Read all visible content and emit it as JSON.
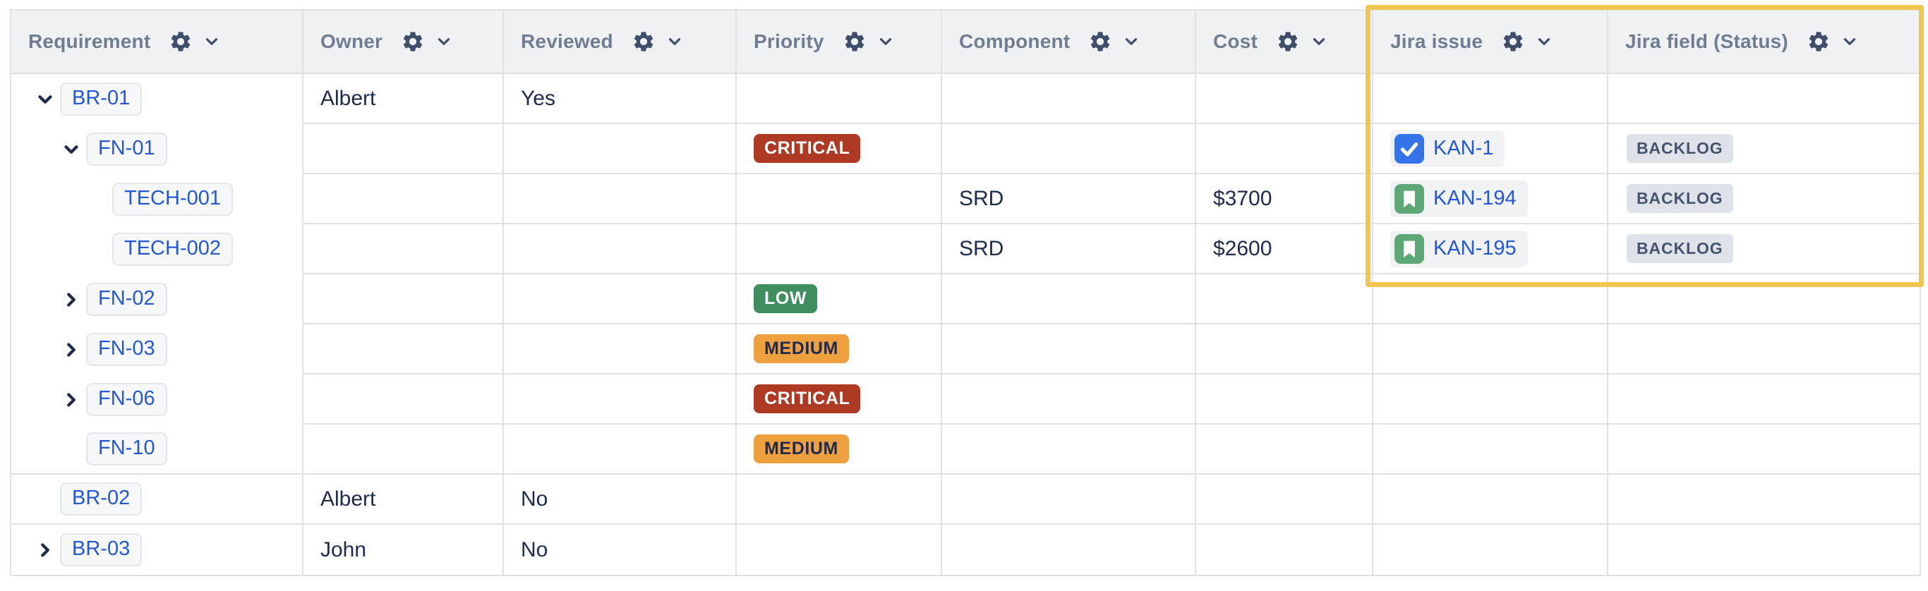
{
  "table": {
    "columns": [
      {
        "key": "requirement",
        "label": "Requirement"
      },
      {
        "key": "owner",
        "label": "Owner"
      },
      {
        "key": "reviewed",
        "label": "Reviewed"
      },
      {
        "key": "priority",
        "label": "Priority"
      },
      {
        "key": "component",
        "label": "Component"
      },
      {
        "key": "cost",
        "label": "Cost"
      },
      {
        "key": "jira_issue",
        "label": "Jira issue"
      },
      {
        "key": "jira_field_status",
        "label": "Jira field (Status)"
      }
    ],
    "rows": [
      {
        "requirement": "BR-01",
        "level": 0,
        "toggle": "expanded",
        "owner": "Albert",
        "reviewed": "Yes",
        "priority": "",
        "component": "",
        "cost": "",
        "jira_issue": null,
        "jira_field_status": ""
      },
      {
        "requirement": "FN-01",
        "level": 1,
        "toggle": "expanded",
        "owner": "",
        "reviewed": "",
        "priority": "CRITICAL",
        "component": "",
        "cost": "",
        "jira_issue": {
          "key": "KAN-1",
          "type": "task"
        },
        "jira_field_status": "BACKLOG"
      },
      {
        "requirement": "TECH-001",
        "level": 2,
        "toggle": "none",
        "owner": "",
        "reviewed": "",
        "priority": "",
        "component": "SRD",
        "cost": "$3700",
        "jira_issue": {
          "key": "KAN-194",
          "type": "story"
        },
        "jira_field_status": "BACKLOG"
      },
      {
        "requirement": "TECH-002",
        "level": 2,
        "toggle": "none",
        "owner": "",
        "reviewed": "",
        "priority": "",
        "component": "SRD",
        "cost": "$2600",
        "jira_issue": {
          "key": "KAN-195",
          "type": "story"
        },
        "jira_field_status": "BACKLOG"
      },
      {
        "requirement": "FN-02",
        "level": 1,
        "toggle": "collapsed",
        "owner": "",
        "reviewed": "",
        "priority": "LOW",
        "component": "",
        "cost": "",
        "jira_issue": null,
        "jira_field_status": ""
      },
      {
        "requirement": "FN-03",
        "level": 1,
        "toggle": "collapsed",
        "owner": "",
        "reviewed": "",
        "priority": "MEDIUM",
        "component": "",
        "cost": "",
        "jira_issue": null,
        "jira_field_status": ""
      },
      {
        "requirement": "FN-06",
        "level": 1,
        "toggle": "collapsed",
        "owner": "",
        "reviewed": "",
        "priority": "CRITICAL",
        "component": "",
        "cost": "",
        "jira_issue": null,
        "jira_field_status": ""
      },
      {
        "requirement": "FN-10",
        "level": 1,
        "toggle": "none",
        "owner": "",
        "reviewed": "",
        "priority": "MEDIUM",
        "component": "",
        "cost": "",
        "jira_issue": null,
        "jira_field_status": ""
      },
      {
        "requirement": "BR-02",
        "level": 0,
        "toggle": "none",
        "owner": "Albert",
        "reviewed": "No",
        "priority": "",
        "component": "",
        "cost": "",
        "jira_issue": null,
        "jira_field_status": ""
      },
      {
        "requirement": "BR-03",
        "level": 0,
        "toggle": "collapsed",
        "owner": "John",
        "reviewed": "No",
        "priority": "",
        "component": "",
        "cost": "",
        "jira_issue": null,
        "jira_field_status": ""
      }
    ]
  },
  "priority_styles": {
    "CRITICAL": {
      "bg": "#ae3a24",
      "fg": "#ffffff"
    },
    "LOW": {
      "bg": "#3e8e5f",
      "fg": "#ffffff"
    },
    "MEDIUM": {
      "bg": "#efa03e",
      "fg": "#1d2b50"
    }
  },
  "issue_type_colors": {
    "task": "#3573e8",
    "story": "#5ca877"
  },
  "icons": {
    "column_settings": "gear-icon",
    "column_menu": "chevron-down-icon",
    "expanded": "chevron-down-icon",
    "collapsed": "chevron-right-icon",
    "task": "task-checkbox-icon",
    "story": "story-bookmark-icon"
  },
  "highlight": {
    "columns": [
      "Jira issue",
      "Jira field (Status)"
    ],
    "color": "#f1c64f"
  }
}
